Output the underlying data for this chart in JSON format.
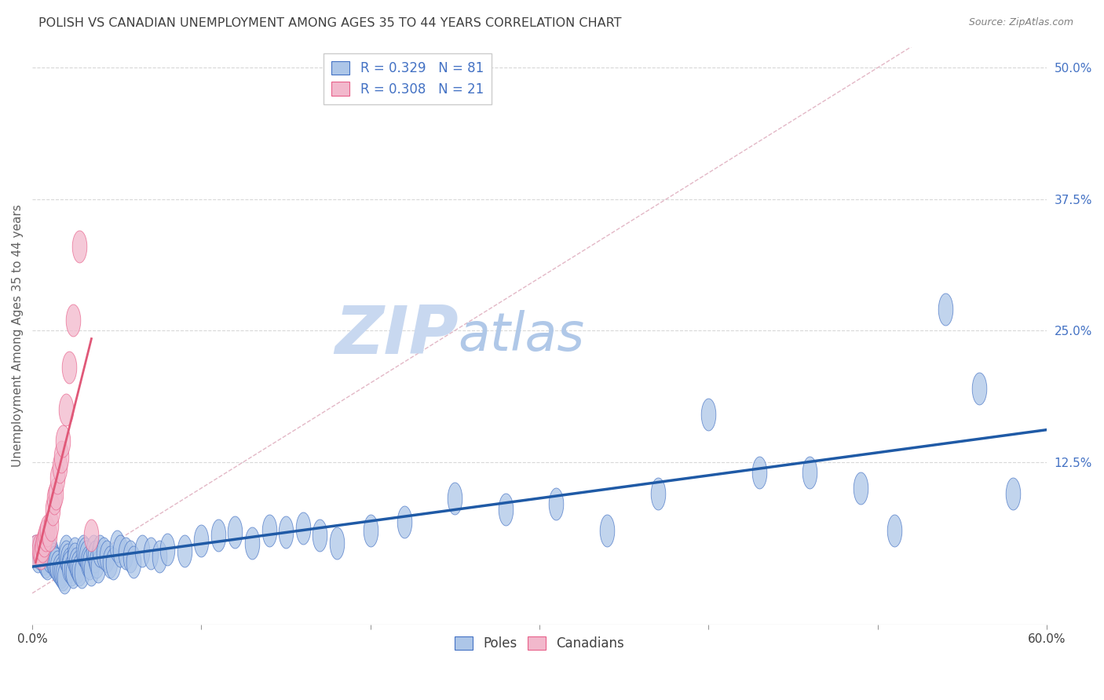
{
  "title": "POLISH VS CANADIAN UNEMPLOYMENT AMONG AGES 35 TO 44 YEARS CORRELATION CHART",
  "source": "Source: ZipAtlas.com",
  "ylabel": "Unemployment Among Ages 35 to 44 years",
  "xlim": [
    0.0,
    0.6
  ],
  "ylim": [
    -0.03,
    0.52
  ],
  "ylim_data": [
    0.0,
    0.5
  ],
  "xticks": [
    0.0,
    0.1,
    0.2,
    0.3,
    0.4,
    0.5,
    0.6
  ],
  "xtick_labels_show": [
    "0.0%",
    "",
    "",
    "",
    "",
    "",
    "60.0%"
  ],
  "yticks_right": [
    0.125,
    0.25,
    0.375,
    0.5
  ],
  "ytick_labels_right": [
    "12.5%",
    "25.0%",
    "37.5%",
    "50.0%"
  ],
  "poles_fill_color": "#adc6e8",
  "poles_edge_color": "#4472c4",
  "canadians_fill_color": "#f2b8cc",
  "canadians_edge_color": "#e8608a",
  "poles_line_color": "#1f5aa6",
  "canadians_line_color": "#e05878",
  "ref_line_color": "#e0b0c0",
  "background_color": "#ffffff",
  "grid_color": "#d8d8d8",
  "title_color": "#404040",
  "axis_label_color": "#606060",
  "tick_color_right": "#4472c4",
  "tick_color_bottom": "#404040",
  "watermark_ZIP": "ZIP",
  "watermark_atlas": "atlas",
  "watermark_ZIP_color": "#c8d8f0",
  "watermark_atlas_color": "#b0c8e8",
  "poles_x": [
    0.002,
    0.003,
    0.004,
    0.005,
    0.006,
    0.007,
    0.008,
    0.009,
    0.01,
    0.01,
    0.011,
    0.012,
    0.013,
    0.014,
    0.015,
    0.016,
    0.017,
    0.018,
    0.019,
    0.02,
    0.02,
    0.021,
    0.022,
    0.022,
    0.023,
    0.024,
    0.025,
    0.025,
    0.026,
    0.027,
    0.028,
    0.029,
    0.03,
    0.031,
    0.032,
    0.033,
    0.034,
    0.035,
    0.036,
    0.037,
    0.038,
    0.039,
    0.04,
    0.042,
    0.044,
    0.046,
    0.048,
    0.05,
    0.052,
    0.055,
    0.058,
    0.06,
    0.065,
    0.07,
    0.075,
    0.08,
    0.09,
    0.1,
    0.11,
    0.12,
    0.13,
    0.14,
    0.15,
    0.16,
    0.17,
    0.18,
    0.2,
    0.22,
    0.25,
    0.28,
    0.31,
    0.34,
    0.37,
    0.4,
    0.43,
    0.46,
    0.49,
    0.51,
    0.54,
    0.56,
    0.58
  ],
  "poles_y": [
    0.04,
    0.035,
    0.038,
    0.042,
    0.037,
    0.033,
    0.03,
    0.028,
    0.035,
    0.04,
    0.038,
    0.033,
    0.03,
    0.028,
    0.025,
    0.022,
    0.02,
    0.018,
    0.015,
    0.04,
    0.035,
    0.032,
    0.028,
    0.025,
    0.022,
    0.02,
    0.038,
    0.033,
    0.028,
    0.025,
    0.022,
    0.02,
    0.04,
    0.038,
    0.035,
    0.03,
    0.028,
    0.022,
    0.04,
    0.035,
    0.03,
    0.025,
    0.04,
    0.038,
    0.035,
    0.03,
    0.028,
    0.045,
    0.04,
    0.038,
    0.035,
    0.03,
    0.04,
    0.038,
    0.035,
    0.042,
    0.04,
    0.05,
    0.055,
    0.058,
    0.048,
    0.06,
    0.058,
    0.062,
    0.055,
    0.048,
    0.06,
    0.068,
    0.09,
    0.08,
    0.085,
    0.06,
    0.095,
    0.17,
    0.115,
    0.115,
    0.1,
    0.06,
    0.27,
    0.195,
    0.095
  ],
  "canadians_x": [
    0.002,
    0.004,
    0.005,
    0.006,
    0.007,
    0.008,
    0.009,
    0.01,
    0.011,
    0.012,
    0.013,
    0.014,
    0.015,
    0.016,
    0.017,
    0.018,
    0.02,
    0.022,
    0.024,
    0.028,
    0.035
  ],
  "canadians_y": [
    0.04,
    0.042,
    0.038,
    0.045,
    0.05,
    0.055,
    0.06,
    0.055,
    0.065,
    0.08,
    0.09,
    0.095,
    0.11,
    0.12,
    0.13,
    0.145,
    0.175,
    0.215,
    0.26,
    0.33,
    0.055
  ]
}
